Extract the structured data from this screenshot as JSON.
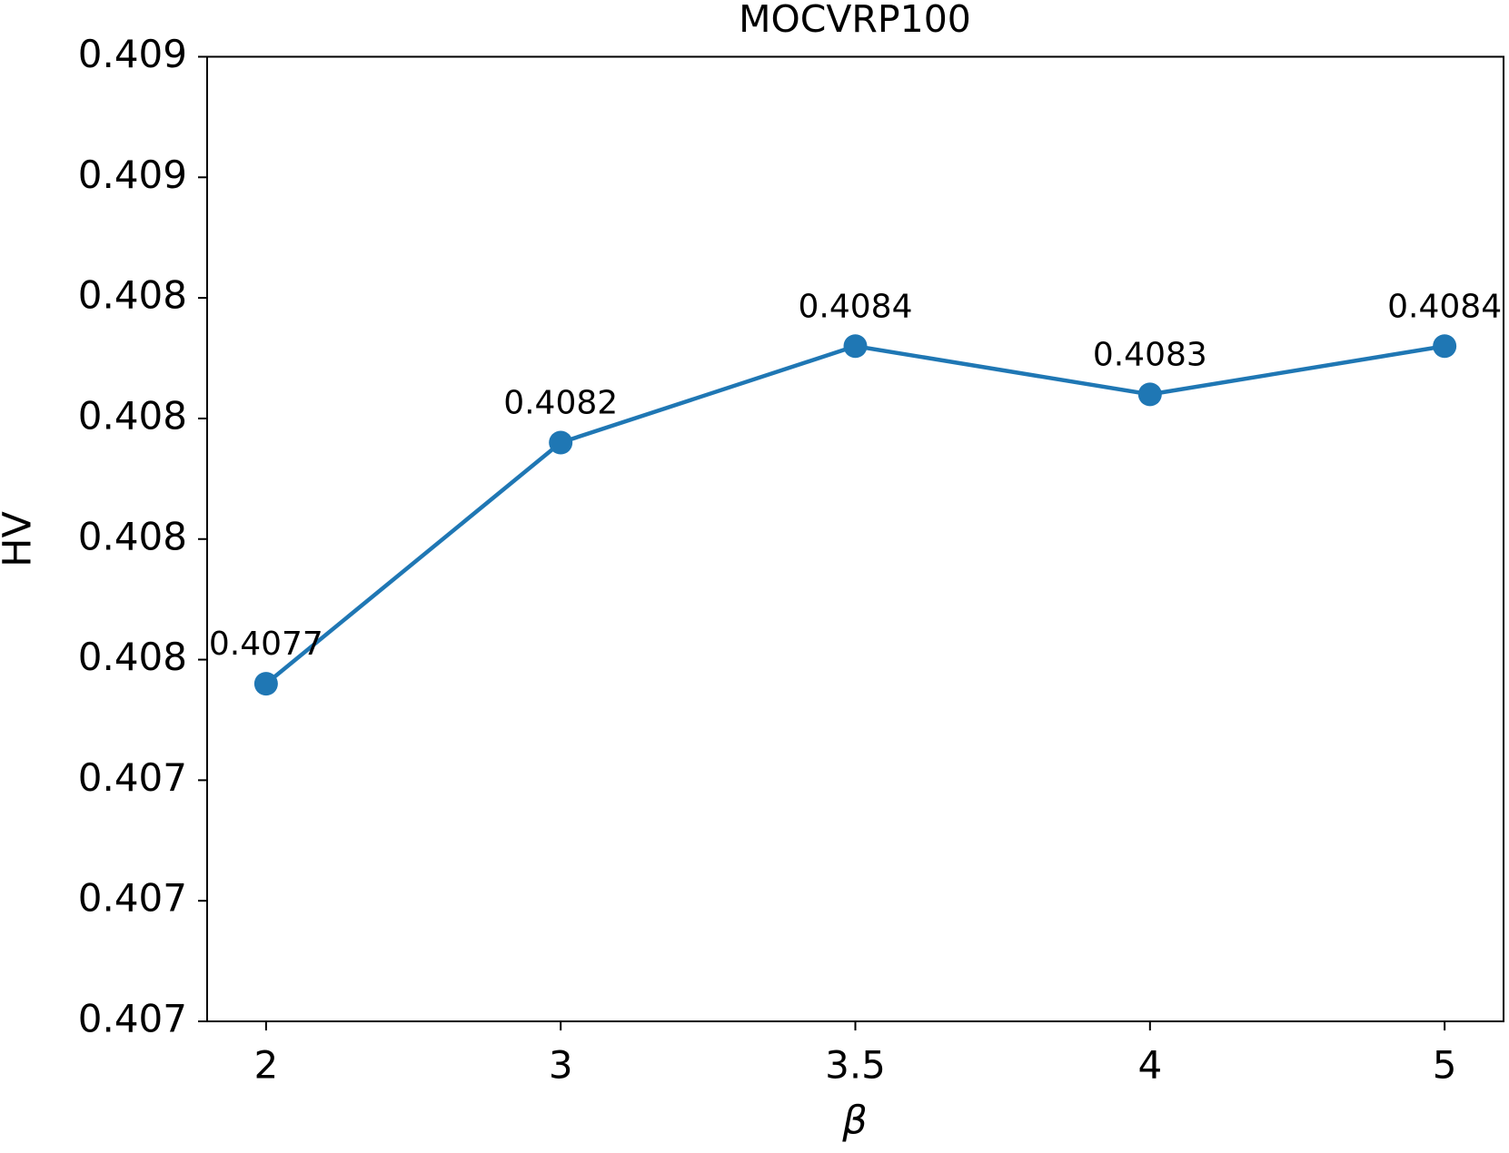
{
  "chart_data": {
    "type": "line",
    "title": "MOCVRP100",
    "x_label": "β",
    "y_label": "HV",
    "categories": [
      "2",
      "3",
      "3.5",
      "4",
      "5"
    ],
    "series": [
      {
        "color": "#1f77b4",
        "values": [
          0.4077,
          0.4082,
          0.4084,
          0.4083,
          0.4084
        ]
      }
    ],
    "ylim": [
      0.407,
      0.409
    ],
    "yticks": [
      {
        "value": 0.407,
        "label": "0.407"
      },
      {
        "value": 0.40725,
        "label": "0.407"
      },
      {
        "value": 0.4075,
        "label": "0.407"
      },
      {
        "value": 0.40775,
        "label": "0.408"
      },
      {
        "value": 0.408,
        "label": "0.408"
      },
      {
        "value": 0.40825,
        "label": "0.408"
      },
      {
        "value": 0.4085,
        "label": "0.408"
      },
      {
        "value": 0.40875,
        "label": "0.409"
      },
      {
        "value": 0.409,
        "label": "0.409"
      }
    ],
    "grid": false
  }
}
